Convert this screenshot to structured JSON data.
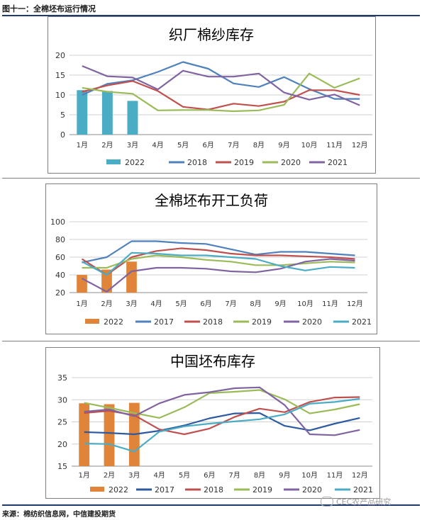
{
  "header": {
    "title": "图十一：全棉坯布运行情况"
  },
  "footer": {
    "source": "来源：棉纺织信息网，中信建投期货"
  },
  "watermark": {
    "text": "CEC农产品研究"
  },
  "chart_data": [
    {
      "type": "bar+line",
      "title": "织厂棉纱库存",
      "categories": [
        "1月",
        "2月",
        "3月",
        "4月",
        "5月",
        "6月",
        "7月",
        "8月",
        "9月",
        "10月",
        "11月",
        "12月"
      ],
      "ylim": [
        0,
        20
      ],
      "yticks": [
        0,
        5,
        10,
        15,
        20
      ],
      "grid": true,
      "legend_position": "bottom",
      "bars": {
        "name": "2022",
        "color": "#4bacc6",
        "values": [
          11.2,
          11.0,
          8.5
        ]
      },
      "series": [
        {
          "name": "2018",
          "color": "#4f81bd",
          "values": [
            10.0,
            12.8,
            13.7,
            15.8,
            18.3,
            16.6,
            12.9,
            12.0,
            14.5,
            11.5,
            9.0,
            9.0
          ]
        },
        {
          "name": "2019",
          "color": "#c0504d",
          "values": [
            10.8,
            12.4,
            13.5,
            11.0,
            7.0,
            6.3,
            7.8,
            7.2,
            8.3,
            11.2,
            11.2,
            10.0
          ]
        },
        {
          "name": "2020",
          "color": "#9bbb59",
          "values": [
            11.8,
            10.8,
            10.3,
            6.1,
            6.2,
            6.2,
            5.9,
            6.1,
            7.5,
            15.4,
            11.8,
            14.2
          ]
        },
        {
          "name": "2021",
          "color": "#8064a2",
          "values": [
            17.3,
            14.7,
            14.4,
            11.4,
            16.1,
            14.6,
            14.6,
            15.4,
            10.6,
            8.8,
            10.1,
            7.4
          ]
        }
      ]
    },
    {
      "type": "bar+line",
      "title": "全棉坯布开工负荷",
      "categories": [
        "1月",
        "2月",
        "3月",
        "4月",
        "5月",
        "6月",
        "7月",
        "8月",
        "9月",
        "10月",
        "11月",
        "12月"
      ],
      "ylim": [
        20,
        100
      ],
      "yticks": [
        20,
        40,
        60,
        80,
        100
      ],
      "grid": true,
      "legend_position": "bottom",
      "bars": {
        "name": "2022",
        "color": "#e0843a",
        "values": [
          40,
          46,
          55
        ]
      },
      "series": [
        {
          "name": "2017",
          "color": "#4f81bd",
          "values": [
            54,
            60,
            78,
            78,
            76,
            75,
            69,
            63,
            66,
            66,
            64,
            62
          ]
        },
        {
          "name": "2018",
          "color": "#c0504d",
          "values": [
            58,
            40,
            60,
            67,
            70,
            68,
            64,
            62,
            62,
            61,
            60,
            58
          ]
        },
        {
          "name": "2019",
          "color": "#9bbb59",
          "values": [
            48,
            48,
            58,
            62,
            60,
            57,
            55,
            51,
            51,
            53,
            55,
            54
          ]
        },
        {
          "name": "2020",
          "color": "#8064a2",
          "values": [
            36,
            21,
            44,
            48,
            48,
            47,
            44,
            43,
            47,
            55,
            58,
            56
          ]
        },
        {
          "name": "2021",
          "color": "#4bacc6",
          "values": [
            55,
            40,
            65,
            64,
            62,
            62,
            60,
            58,
            50,
            45,
            49,
            48
          ]
        }
      ]
    },
    {
      "type": "bar+line",
      "title": "中国坯布库存",
      "categories": [
        "1月",
        "2月",
        "3月",
        "4月",
        "5月",
        "6月",
        "7月",
        "8月",
        "9月",
        "10月",
        "11月",
        "12月"
      ],
      "ylim": [
        15,
        35
      ],
      "yticks": [
        15,
        20,
        25,
        30,
        35
      ],
      "grid": true,
      "legend_position": "bottom",
      "bars": {
        "name": "2022",
        "color": "#e0843a",
        "values": [
          29.2,
          29.0,
          29.3
        ]
      },
      "series": [
        {
          "name": "2017",
          "color": "#2e5aa0",
          "values": [
            22.7,
            22.5,
            22.2,
            23.0,
            24.2,
            25.8,
            26.9,
            27.0,
            24.1,
            23.1,
            24.6,
            25.9
          ]
        },
        {
          "name": "2018",
          "color": "#c0504d",
          "values": [
            27.0,
            27.5,
            26.5,
            23.3,
            22.2,
            23.5,
            26.1,
            28.0,
            27.2,
            29.5,
            30.5,
            30.6
          ]
        },
        {
          "name": "2019",
          "color": "#9bbb59",
          "values": [
            29.3,
            28.2,
            27.0,
            25.9,
            28.3,
            31.5,
            31.8,
            32.2,
            30.1,
            26.9,
            27.8,
            29.0
          ]
        },
        {
          "name": "2020",
          "color": "#8064a2",
          "values": [
            27.3,
            27.8,
            26.3,
            29.2,
            31.1,
            31.7,
            32.6,
            32.8,
            28.8,
            22.2,
            22.0,
            23.2
          ]
        },
        {
          "name": "2021",
          "color": "#4bacc6",
          "values": [
            20.1,
            20.0,
            18.3,
            22.8,
            24.0,
            24.6,
            25.1,
            25.6,
            26.7,
            29.1,
            29.5,
            30.2
          ]
        }
      ]
    }
  ]
}
